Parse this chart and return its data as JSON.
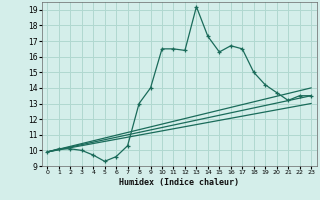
{
  "title": "",
  "xlabel": "Humidex (Indice chaleur)",
  "ylabel": "",
  "background_color": "#d4eeea",
  "grid_color": "#b0d8d0",
  "line_color": "#1a6b5a",
  "xlim": [
    -0.5,
    23.5
  ],
  "ylim": [
    9,
    19.5
  ],
  "xticks": [
    0,
    1,
    2,
    3,
    4,
    5,
    6,
    7,
    8,
    9,
    10,
    11,
    12,
    13,
    14,
    15,
    16,
    17,
    18,
    19,
    20,
    21,
    22,
    23
  ],
  "yticks": [
    9,
    10,
    11,
    12,
    13,
    14,
    15,
    16,
    17,
    18,
    19
  ],
  "series": [
    [
      0,
      9.9
    ],
    [
      1,
      10.1
    ],
    [
      2,
      10.1
    ],
    [
      3,
      10.0
    ],
    [
      4,
      9.7
    ],
    [
      5,
      9.3
    ],
    [
      6,
      9.6
    ],
    [
      7,
      10.3
    ],
    [
      8,
      13.0
    ],
    [
      9,
      14.0
    ],
    [
      10,
      16.5
    ],
    [
      11,
      16.5
    ],
    [
      12,
      16.4
    ],
    [
      13,
      19.2
    ],
    [
      14,
      17.3
    ],
    [
      15,
      16.3
    ],
    [
      16,
      16.7
    ],
    [
      17,
      16.5
    ],
    [
      18,
      15.0
    ],
    [
      19,
      14.2
    ],
    [
      20,
      13.7
    ],
    [
      21,
      13.2
    ],
    [
      22,
      13.5
    ],
    [
      23,
      13.5
    ]
  ],
  "line2": [
    [
      0,
      9.9
    ],
    [
      23,
      14.0
    ]
  ],
  "line3": [
    [
      0,
      9.9
    ],
    [
      23,
      13.5
    ]
  ],
  "line4": [
    [
      0,
      9.9
    ],
    [
      23,
      13.0
    ]
  ]
}
